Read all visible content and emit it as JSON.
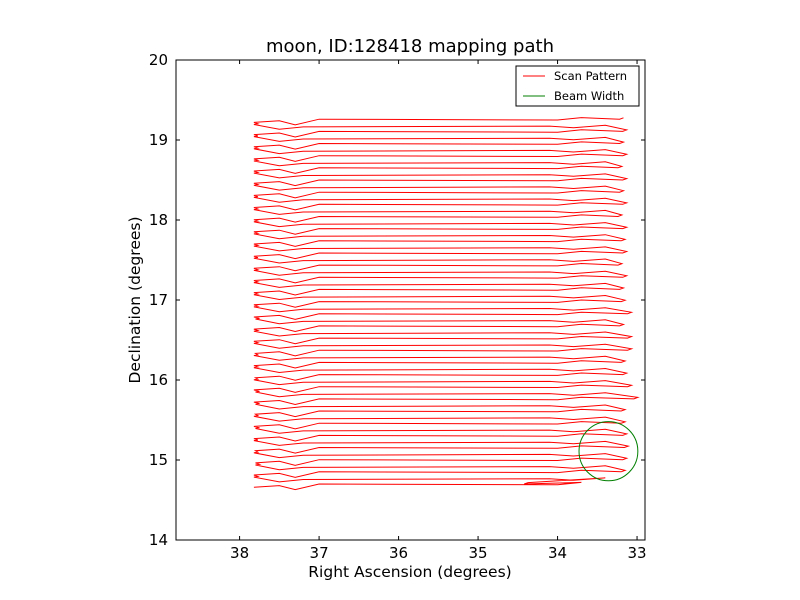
{
  "chart_data": {
    "type": "line",
    "title": "moon, ID:128418 mapping path",
    "xlabel": "Right Ascension (degrees)",
    "ylabel": "Declination (degrees)",
    "xlim": [
      38.8,
      32.9
    ],
    "ylim": [
      14,
      20
    ],
    "x_ticks": [
      38,
      37,
      36,
      35,
      34,
      33
    ],
    "y_ticks": [
      14,
      15,
      16,
      17,
      18,
      19,
      20
    ],
    "x_tick_labels": [
      "38",
      "37",
      "36",
      "35",
      "34",
      "33"
    ],
    "y_tick_labels": [
      "14",
      "15",
      "16",
      "17",
      "18",
      "19",
      "20"
    ],
    "grid": false,
    "legend_position": "top-right",
    "series": [
      {
        "name": "Scan Pattern",
        "color": "#ff0000",
        "description_note": "",
        "raster": {
          "dec_start": 14.68,
          "dec_end": 19.27,
          "row_step": 0.076,
          "ra_left": [
            37.82,
            37.82,
            37.82,
            37.8,
            37.8,
            37.82,
            37.8,
            37.82,
            37.82,
            37.8,
            37.82,
            37.82,
            37.8,
            37.8,
            37.82,
            37.8,
            37.82,
            37.82,
            37.8,
            37.82,
            37.82,
            37.82,
            37.8,
            37.82,
            37.82,
            37.82,
            37.82,
            37.8,
            37.82,
            37.82,
            37.82,
            37.82,
            37.82,
            37.82,
            37.82,
            37.82,
            37.82,
            37.82,
            37.82,
            37.82,
            37.82,
            37.82,
            37.82,
            37.82,
            37.82,
            37.82,
            37.82,
            37.82,
            37.82,
            37.82,
            37.82,
            37.82,
            37.82,
            37.82,
            37.82,
            37.82,
            37.82,
            37.82,
            37.82,
            37.82,
            37.82
          ],
          "ra_right": [
            34.42,
            33.22,
            33.2,
            33.24,
            33.18,
            33.22,
            33.16,
            33.22,
            33.18,
            33.06,
            33.2,
            33.04,
            33.2,
            33.22,
            33.04,
            33.2,
            33.12,
            33.2,
            33.18,
            33.0,
            33.2,
            33.24,
            33.12,
            33.24,
            33.12,
            33.2,
            33.22,
            33.18,
            33.12,
            33.24,
            33.2,
            33.12,
            33.22,
            33.2,
            33.18,
            33.12,
            33.24,
            33.22,
            33.18,
            33.12,
            33.2,
            33.22,
            33.18,
            33.12,
            33.24,
            33.2,
            33.18,
            33.12,
            33.22,
            33.2,
            33.18,
            33.12,
            33.24,
            33.2,
            33.18,
            33.12,
            33.22,
            33.2,
            33.18,
            33.2,
            33.22
          ]
        }
      },
      {
        "name": "Beam Width",
        "color": "#007f00",
        "circle": {
          "ra_center": 33.36,
          "dec_center": 15.11,
          "radius_deg": 0.37
        }
      }
    ]
  }
}
